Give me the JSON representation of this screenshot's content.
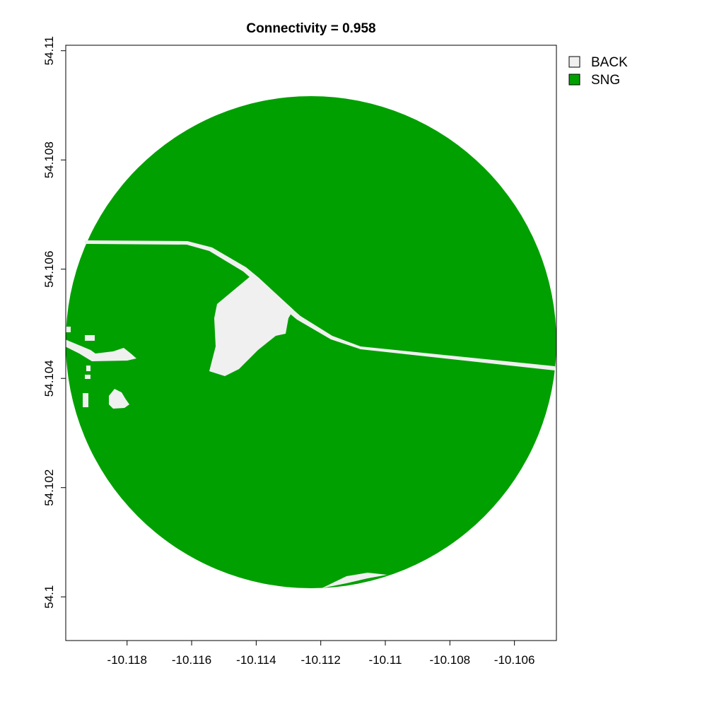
{
  "title": "Connectivity = 0.958",
  "x_ticks": [
    "-10.118",
    "-10.116",
    "-10.114",
    "-10.112",
    "-10.11",
    "-10.108",
    "-10.106"
  ],
  "y_ticks": [
    "54.1",
    "54.102",
    "54.104",
    "54.106",
    "54.108",
    "54.11"
  ],
  "x_range": [
    -10.1199,
    -10.1047
  ],
  "y_range": [
    54.0992,
    54.1101
  ],
  "legend": [
    {
      "label": "BACK",
      "color": "#f0f0f0"
    },
    {
      "label": "SNG",
      "color": "#00a000"
    }
  ],
  "colors": {
    "background_class": "#f0f0f0",
    "sng_class": "#00a000"
  }
}
